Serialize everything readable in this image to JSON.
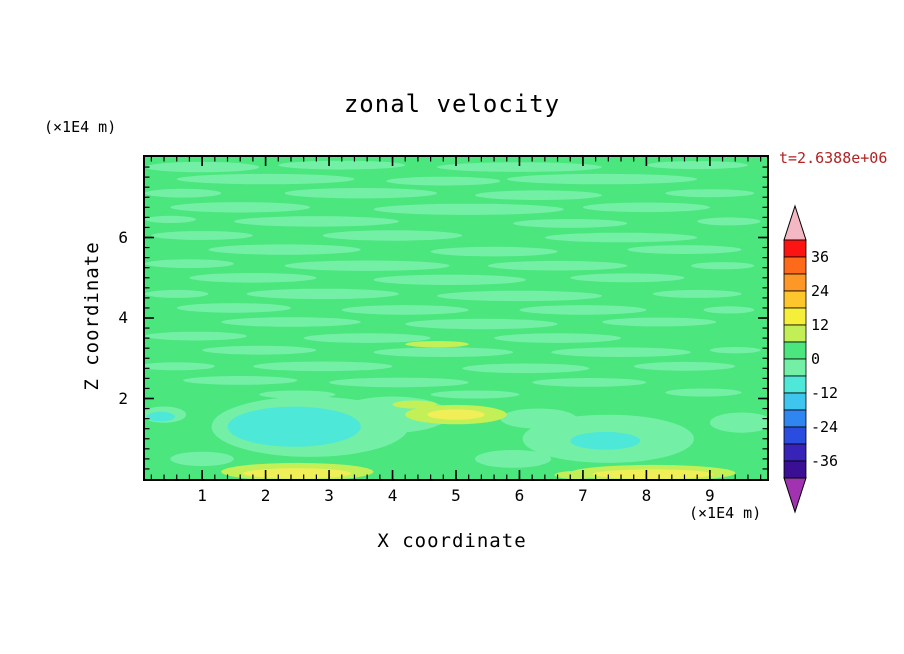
{
  "chart_data": {
    "type": "filled_contour",
    "title": "zonal velocity",
    "time_annotation": "t=2.6388e+06",
    "time_color": "#b22222",
    "axes": {
      "x": {
        "label": "X coordinate",
        "units": "(×1E4 m)",
        "range": [
          0.1,
          9.9
        ],
        "major_ticks": [
          1,
          2,
          3,
          4,
          5,
          6,
          7,
          8,
          9
        ],
        "minor_step": 0.2
      },
      "z": {
        "label": "Z coordinate",
        "units": "(×1E4 m)",
        "range": [
          0,
          8
        ],
        "major_ticks": [
          2,
          4,
          6
        ],
        "minor_step": 0.25
      }
    },
    "colorbar": {
      "ticks": [
        36,
        24,
        12,
        0,
        -12,
        -24,
        -36
      ],
      "vmin": -42,
      "vmax": 42,
      "level_step": 6,
      "segments_top_to_bottom": [
        "#fb1412",
        "#fd6a1a",
        "#fd9827",
        "#fdc62c",
        "#f6ef3a",
        "#c2ef55",
        "#4be67d",
        "#73f0a6",
        "#4de8d8",
        "#3ec6ee",
        "#2f86f0",
        "#2a4cdf",
        "#3823b8",
        "#3a0f93"
      ],
      "arrow_top_color": "#f3b8c4",
      "arrow_bottom_color": "#a133b1"
    },
    "field": {
      "background_color": "#4be67d",
      "palette": {
        "p": "#73f0a6",
        "c": "#4de8d8",
        "g": "#c3ef57",
        "y": "#f1ef57"
      },
      "palette_levels": {
        "p": "0 to -6",
        "c": "-6 to -12",
        "g": "6 to 12",
        "y": "12 to 18"
      },
      "features": [
        [
          1.0,
          7.75,
          0.9,
          0.13,
          "p"
        ],
        [
          3.2,
          7.8,
          1.0,
          0.11,
          "p"
        ],
        [
          6.0,
          7.75,
          1.3,
          0.12,
          "p"
        ],
        [
          8.8,
          7.8,
          0.8,
          0.1,
          "p"
        ],
        [
          2.0,
          7.45,
          1.4,
          0.13,
          "p"
        ],
        [
          4.8,
          7.4,
          0.9,
          0.11,
          "p"
        ],
        [
          7.3,
          7.45,
          1.5,
          0.13,
          "p"
        ],
        [
          0.7,
          7.1,
          0.6,
          0.11,
          "p"
        ],
        [
          3.5,
          7.1,
          1.2,
          0.13,
          "p"
        ],
        [
          6.3,
          7.05,
          1.0,
          0.12,
          "p"
        ],
        [
          9.0,
          7.1,
          0.7,
          0.1,
          "p"
        ],
        [
          1.6,
          6.75,
          1.1,
          0.13,
          "p"
        ],
        [
          5.2,
          6.7,
          1.5,
          0.14,
          "p"
        ],
        [
          8.0,
          6.75,
          1.0,
          0.12,
          "p"
        ],
        [
          0.5,
          6.45,
          0.4,
          0.09,
          "p"
        ],
        [
          2.8,
          6.4,
          1.3,
          0.13,
          "p"
        ],
        [
          6.8,
          6.35,
          0.9,
          0.11,
          "p"
        ],
        [
          9.3,
          6.4,
          0.5,
          0.1,
          "p"
        ],
        [
          1.0,
          6.05,
          0.8,
          0.11,
          "p"
        ],
        [
          4.0,
          6.05,
          1.1,
          0.13,
          "p"
        ],
        [
          7.6,
          6.0,
          1.2,
          0.12,
          "p"
        ],
        [
          2.3,
          5.7,
          1.2,
          0.13,
          "p"
        ],
        [
          5.6,
          5.65,
          1.0,
          0.12,
          "p"
        ],
        [
          8.6,
          5.7,
          0.9,
          0.11,
          "p"
        ],
        [
          0.8,
          5.35,
          0.7,
          0.11,
          "p"
        ],
        [
          3.6,
          5.3,
          1.3,
          0.13,
          "p"
        ],
        [
          6.6,
          5.3,
          1.1,
          0.12,
          "p"
        ],
        [
          9.2,
          5.3,
          0.5,
          0.09,
          "p"
        ],
        [
          1.8,
          5.0,
          1.0,
          0.12,
          "p"
        ],
        [
          4.9,
          4.95,
          1.2,
          0.13,
          "p"
        ],
        [
          7.7,
          5.0,
          0.9,
          0.11,
          "p"
        ],
        [
          0.6,
          4.6,
          0.5,
          0.1,
          "p"
        ],
        [
          2.9,
          4.6,
          1.2,
          0.13,
          "p"
        ],
        [
          6.0,
          4.55,
          1.3,
          0.13,
          "p"
        ],
        [
          8.8,
          4.6,
          0.7,
          0.1,
          "p"
        ],
        [
          1.5,
          4.25,
          0.9,
          0.12,
          "p"
        ],
        [
          4.2,
          4.2,
          1.0,
          0.12,
          "p"
        ],
        [
          7.0,
          4.2,
          1.0,
          0.12,
          "p"
        ],
        [
          9.3,
          4.2,
          0.4,
          0.09,
          "p"
        ],
        [
          2.4,
          3.9,
          1.1,
          0.12,
          "p"
        ],
        [
          5.4,
          3.85,
          1.2,
          0.13,
          "p"
        ],
        [
          8.2,
          3.9,
          0.9,
          0.11,
          "p"
        ],
        [
          0.9,
          3.55,
          0.8,
          0.11,
          "p"
        ],
        [
          3.6,
          3.5,
          1.0,
          0.12,
          "p"
        ],
        [
          6.6,
          3.5,
          1.0,
          0.12,
          "p"
        ],
        [
          1.9,
          3.2,
          0.9,
          0.11,
          "p"
        ],
        [
          4.8,
          3.15,
          1.1,
          0.12,
          "p"
        ],
        [
          7.6,
          3.15,
          1.1,
          0.12,
          "p"
        ],
        [
          9.4,
          3.2,
          0.4,
          0.08,
          "p"
        ],
        [
          0.6,
          2.8,
          0.6,
          0.1,
          "p"
        ],
        [
          2.9,
          2.8,
          1.1,
          0.12,
          "p"
        ],
        [
          6.1,
          2.75,
          1.0,
          0.12,
          "p"
        ],
        [
          8.6,
          2.8,
          0.8,
          0.11,
          "p"
        ],
        [
          1.6,
          2.45,
          0.9,
          0.11,
          "p"
        ],
        [
          4.1,
          2.4,
          1.1,
          0.12,
          "p"
        ],
        [
          7.1,
          2.4,
          0.9,
          0.11,
          "p"
        ],
        [
          2.5,
          2.1,
          0.6,
          0.1,
          "p"
        ],
        [
          5.3,
          2.1,
          0.7,
          0.1,
          "p"
        ],
        [
          8.9,
          2.15,
          0.6,
          0.1,
          "p"
        ],
        [
          2.7,
          1.3,
          1.55,
          0.75,
          "p"
        ],
        [
          4.0,
          1.6,
          0.9,
          0.45,
          "p"
        ],
        [
          7.4,
          1.0,
          1.35,
          0.6,
          "p"
        ],
        [
          6.3,
          1.5,
          0.6,
          0.25,
          "p"
        ],
        [
          9.5,
          1.4,
          0.5,
          0.25,
          "p"
        ],
        [
          0.4,
          1.6,
          0.35,
          0.2,
          "p"
        ],
        [
          5.9,
          0.5,
          0.6,
          0.22,
          "p"
        ],
        [
          1.0,
          0.5,
          0.5,
          0.18,
          "p"
        ],
        [
          2.45,
          1.3,
          1.05,
          0.5,
          "c"
        ],
        [
          0.35,
          1.55,
          0.22,
          0.12,
          "c"
        ],
        [
          7.35,
          0.95,
          0.55,
          0.22,
          "c"
        ],
        [
          5.0,
          1.6,
          0.8,
          0.24,
          "g"
        ],
        [
          4.35,
          1.85,
          0.35,
          0.1,
          "g"
        ],
        [
          2.5,
          0.18,
          1.2,
          0.22,
          "g"
        ],
        [
          8.1,
          0.15,
          1.3,
          0.2,
          "g"
        ],
        [
          6.9,
          0.1,
          0.35,
          0.1,
          "g"
        ],
        [
          4.7,
          3.35,
          0.5,
          0.08,
          "g"
        ],
        [
          5.0,
          1.6,
          0.45,
          0.13,
          "y"
        ],
        [
          2.5,
          0.14,
          0.85,
          0.13,
          "y"
        ],
        [
          8.1,
          0.12,
          0.95,
          0.12,
          "y"
        ]
      ]
    }
  }
}
